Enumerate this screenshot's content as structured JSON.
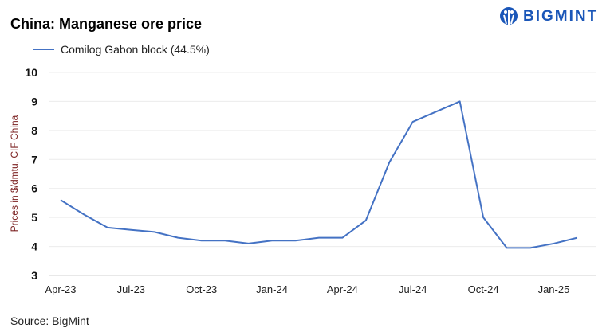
{
  "title": "China: Manganese ore price",
  "logo": "BIGMINT",
  "source": "Source: BigMint",
  "chart_data": {
    "type": "line",
    "title": "China: Manganese ore price",
    "ylabel": "Prices in $/dmtu, CIF China",
    "xlabel": "",
    "ylim": [
      3,
      10
    ],
    "yticks": [
      3,
      4,
      5,
      6,
      7,
      8,
      9,
      10
    ],
    "grid": true,
    "legend_position": "top-left",
    "x": [
      "Apr-23",
      "May-23",
      "Jun-23",
      "Jul-23",
      "Aug-23",
      "Sep-23",
      "Oct-23",
      "Nov-23",
      "Dec-23",
      "Jan-24",
      "Feb-24",
      "Mar-24",
      "Apr-24",
      "May-24",
      "Jun-24",
      "Jul-24",
      "Aug-24",
      "Sep-24",
      "Oct-24",
      "Nov-24",
      "Dec-24",
      "Jan-25",
      "Feb-25"
    ],
    "xtick_labels": [
      "Apr-23",
      "Jul-23",
      "Oct-23",
      "Jan-24",
      "Apr-24",
      "Jul-24",
      "Oct-24",
      "Jan-25"
    ],
    "series": [
      {
        "name": "Comilog Gabon block (44.5%)",
        "color": "#4472c4",
        "values": [
          5.6,
          5.1,
          4.65,
          4.57,
          4.5,
          4.3,
          4.2,
          4.2,
          4.1,
          4.2,
          4.2,
          4.3,
          4.3,
          4.9,
          6.9,
          8.3,
          8.65,
          9.0,
          5.0,
          3.95,
          3.95,
          4.1,
          4.3
        ]
      }
    ]
  }
}
